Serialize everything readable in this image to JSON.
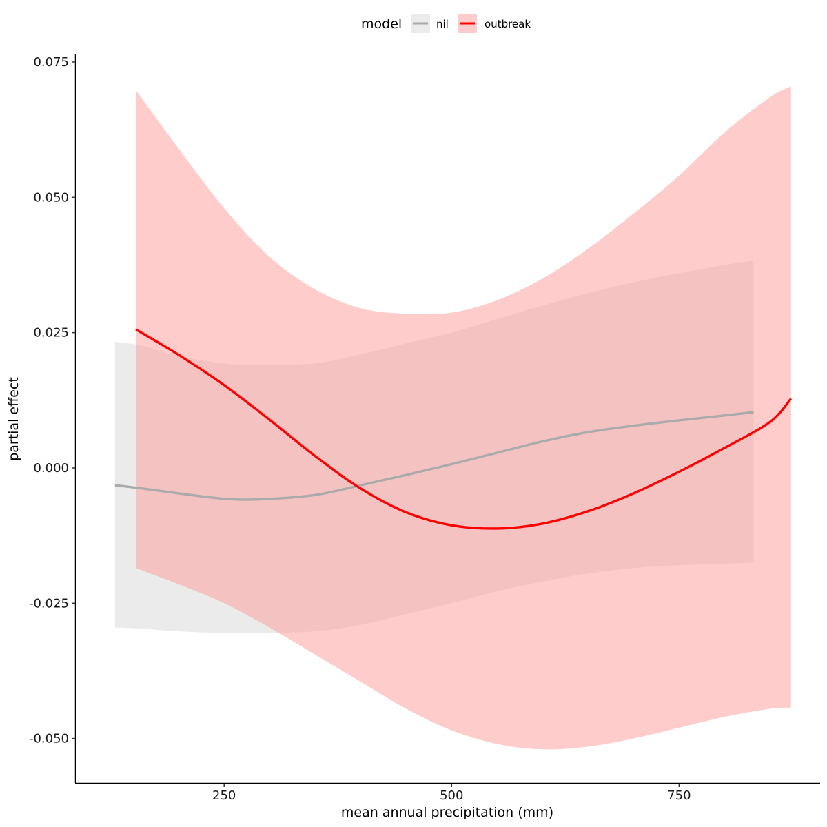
{
  "chart_data": {
    "type": "line",
    "xlabel": "mean annual precipitation (mm)",
    "ylabel": "partial effect",
    "xlim": [
      87,
      905
    ],
    "ylim": [
      -0.0582,
      0.0764
    ],
    "x_ticks": [
      250,
      500,
      750
    ],
    "x_tick_labels": [
      "250",
      "500",
      "750"
    ],
    "y_ticks": [
      -0.05,
      -0.025,
      0.0,
      0.025,
      0.05,
      0.075
    ],
    "y_tick_labels": [
      "-0.050",
      "-0.025",
      "0.000",
      "0.025",
      "0.050",
      "0.075"
    ],
    "grid": false,
    "legend": {
      "title": "model",
      "position": "top"
    },
    "series": [
      {
        "name": "nil",
        "color": "#aaaaaa",
        "band_color": "#ebebeb",
        "x": [
          130,
          160,
          200,
          250,
          290,
          350,
          400,
          450,
          500,
          550,
          600,
          650,
          700,
          750,
          800,
          832
        ],
        "y": [
          -0.0032,
          -0.0038,
          -0.0047,
          -0.0057,
          -0.0058,
          -0.005,
          -0.0032,
          -0.0013,
          0.0007,
          0.0028,
          0.0049,
          0.0066,
          0.0078,
          0.0088,
          0.0097,
          0.0103
        ],
        "lower": [
          -0.0295,
          -0.0297,
          -0.0302,
          -0.0305,
          -0.0305,
          -0.0302,
          -0.029,
          -0.027,
          -0.025,
          -0.0228,
          -0.021,
          -0.0195,
          -0.0185,
          -0.018,
          -0.0177,
          -0.0175
        ],
        "upper": [
          0.0233,
          0.0226,
          0.0207,
          0.0193,
          0.0191,
          0.0193,
          0.021,
          0.023,
          0.025,
          0.0275,
          0.03,
          0.0323,
          0.0343,
          0.036,
          0.0375,
          0.0383
        ]
      },
      {
        "name": "outbreak",
        "color": "#ff0000",
        "band_color": "#ff9999",
        "x": [
          153,
          200,
          250,
          300,
          350,
          400,
          450,
          500,
          550,
          600,
          650,
          700,
          750,
          800,
          850,
          873
        ],
        "y": [
          0.0256,
          0.0209,
          0.0153,
          0.0089,
          0.0022,
          -0.0038,
          -0.0082,
          -0.0106,
          -0.0112,
          -0.0103,
          -0.008,
          -0.0047,
          -0.0007,
          0.0037,
          0.0085,
          0.0128
        ],
        "lower": [
          -0.0185,
          -0.0215,
          -0.025,
          -0.0295,
          -0.0345,
          -0.0395,
          -0.0445,
          -0.0485,
          -0.051,
          -0.052,
          -0.0515,
          -0.05,
          -0.048,
          -0.046,
          -0.0445,
          -0.0443
        ],
        "upper": [
          0.0698,
          0.059,
          0.048,
          0.039,
          0.033,
          0.0295,
          0.0285,
          0.0287,
          0.031,
          0.035,
          0.0405,
          0.047,
          0.054,
          0.062,
          0.0685,
          0.0705
        ]
      }
    ]
  }
}
